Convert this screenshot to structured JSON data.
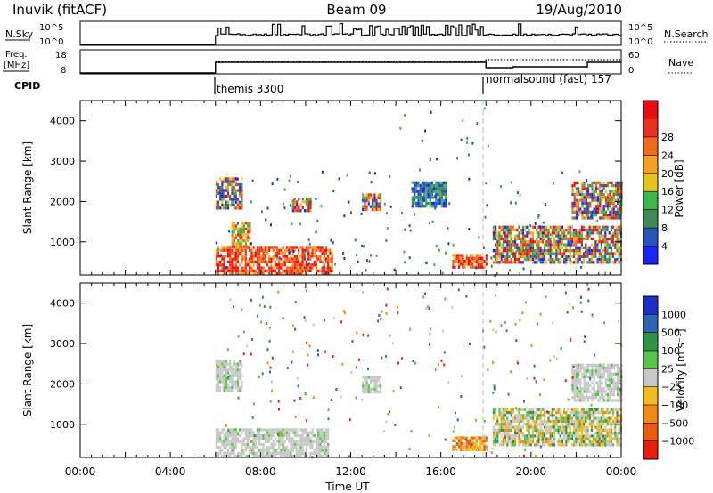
{
  "header": {
    "station": "Inuvik (fitACF)",
    "beam": "Beam 09",
    "date": "19/Aug/2010"
  },
  "panels": {
    "nsky_label": "N.Sky",
    "nsearch_label": "N.Search",
    "freq_label_line1": "Freq.",
    "freq_label_line2": "[MHz]",
    "nave_label": "Nave",
    "cpid_label": "CPID",
    "nsky_ticks": [
      "10^5",
      "10^0"
    ],
    "nsearch_ticks": [
      "10^5",
      "10^0"
    ],
    "freq_ticks": [
      "18",
      "8"
    ],
    "nave_ticks": [
      "60",
      "0"
    ],
    "cpid_segments": [
      {
        "start_hour": 6,
        "end_hour": 18,
        "label": "themis 3300"
      },
      {
        "start_hour": 18,
        "end_hour": 24,
        "label": "normalsound (fast) 157"
      }
    ]
  },
  "chart_data": [
    {
      "type": "heatmap",
      "title": "",
      "xlabel": "",
      "ylabel": "Slant Range [km]",
      "xlim": [
        0,
        24
      ],
      "ylim": [
        180,
        4500
      ],
      "yticks": [
        1000,
        2000,
        3000,
        4000
      ],
      "colorbar": {
        "label": "Power [dB]",
        "ticks": [
          4,
          8,
          12,
          16,
          20,
          24,
          28
        ],
        "colors": [
          "#1b24ff",
          "#2855b9",
          "#3f8a55",
          "#3cb84a",
          "#e6c31e",
          "#f5a025",
          "#f06a1e",
          "#e8311e",
          "#e80e0e"
        ]
      },
      "regions": [
        {
          "t": [
            6.0,
            11.2
          ],
          "r": [
            180,
            900
          ],
          "level": "high"
        },
        {
          "t": [
            6.7,
            7.5
          ],
          "r": [
            900,
            1500
          ],
          "level": "mid"
        },
        {
          "t": [
            6.0,
            7.2
          ],
          "r": [
            1800,
            2600
          ],
          "level": "mix"
        },
        {
          "t": [
            9.4,
            10.2
          ],
          "r": [
            1800,
            2100
          ],
          "level": "mix"
        },
        {
          "t": [
            12.5,
            13.3
          ],
          "r": [
            1800,
            2200
          ],
          "level": "mix"
        },
        {
          "t": [
            14.7,
            16.2
          ],
          "r": [
            1900,
            2500
          ],
          "level": "low"
        },
        {
          "t": [
            16.5,
            18.0
          ],
          "r": [
            400,
            700
          ],
          "level": "high"
        },
        {
          "t": [
            18.3,
            24.0
          ],
          "r": [
            500,
            1400
          ],
          "level": "mix"
        },
        {
          "t": [
            21.8,
            24.0
          ],
          "r": [
            1600,
            2500
          ],
          "level": "mix"
        }
      ]
    },
    {
      "type": "heatmap",
      "title": "",
      "xlabel": "Time UT",
      "ylabel": "Slant Range [km]",
      "xlim": [
        0,
        24
      ],
      "ylim": [
        180,
        4500
      ],
      "yticks": [
        1000,
        2000,
        3000,
        4000
      ],
      "xticks": [
        "00:00",
        "04:00",
        "08:00",
        "12:00",
        "16:00",
        "20:00",
        "00:00"
      ],
      "colorbar": {
        "label": "Velocity [m s^-1]",
        "ticks": [
          1000,
          500,
          100,
          25,
          -25,
          -100,
          -500,
          -1000
        ],
        "colors": [
          "#1c30c8",
          "#2d64b4",
          "#2e9346",
          "#5ac34b",
          "#c8c8c8",
          "#f5b91e",
          "#f08c14",
          "#eb5a0f",
          "#e61e0f"
        ]
      },
      "regions": [
        {
          "t": [
            6.0,
            11.0
          ],
          "r": [
            180,
            900
          ],
          "level": "low"
        },
        {
          "t": [
            6.0,
            7.2
          ],
          "r": [
            1800,
            2600
          ],
          "level": "low"
        },
        {
          "t": [
            12.5,
            13.3
          ],
          "r": [
            1800,
            2200
          ],
          "level": "low"
        },
        {
          "t": [
            16.5,
            18.0
          ],
          "r": [
            400,
            700
          ],
          "level": "high"
        },
        {
          "t": [
            18.3,
            24.0
          ],
          "r": [
            500,
            1400
          ],
          "level": "mix"
        },
        {
          "t": [
            21.8,
            24.0
          ],
          "r": [
            1600,
            2500
          ],
          "level": "low"
        }
      ]
    }
  ],
  "axis": {
    "xlabel": "Time UT",
    "xticks": [
      "00:00",
      "04:00",
      "08:00",
      "12:00",
      "16:00",
      "20:00",
      "00:00"
    ],
    "yticks": [
      "1000",
      "2000",
      "3000",
      "4000"
    ],
    "ylabel": "Slant Range [km]",
    "power_cbar_label": "Power [dB]",
    "power_cbar_ticks": [
      "4",
      "8",
      "12",
      "16",
      "20",
      "24",
      "28"
    ],
    "velocity_cbar_label": "Velocity [m s⁻¹]",
    "velocity_cbar_ticks": [
      "1000",
      "500",
      "100",
      "25",
      "−25",
      "−100",
      "−500",
      "−1000"
    ]
  }
}
